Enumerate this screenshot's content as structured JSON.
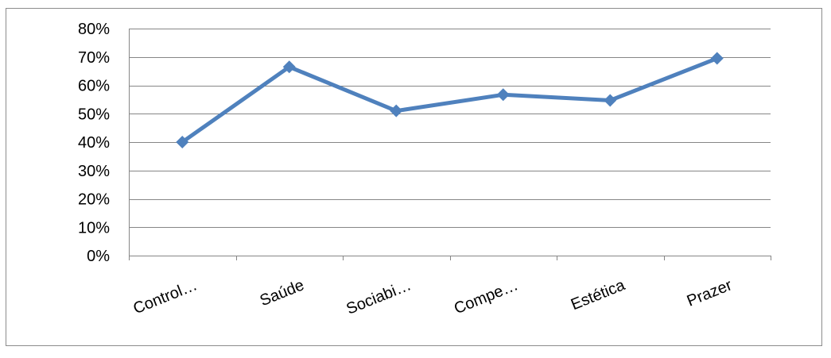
{
  "chart_data": {
    "type": "line",
    "title": "",
    "xlabel": "",
    "ylabel": "",
    "categories": [
      "Control…",
      "Saúde",
      "Sociabi…",
      "Compe…",
      "Estética",
      "Prazer"
    ],
    "series": [
      {
        "values": [
          0.4,
          0.665,
          0.51,
          0.567,
          0.547,
          0.695
        ]
      }
    ],
    "ylim": [
      0,
      0.8
    ],
    "yticks": [
      0,
      0.1,
      0.2,
      0.3,
      0.4,
      0.5,
      0.6,
      0.7,
      0.8
    ],
    "ytick_labels": [
      "0%",
      "10%",
      "20%",
      "30%",
      "40%",
      "50%",
      "60%",
      "70%",
      "80%"
    ],
    "grid": true,
    "legend": "none",
    "marker": "diamond",
    "colors": {
      "series": "#4f81bd",
      "grid": "#868686",
      "frame": "#8c8c8c"
    }
  }
}
